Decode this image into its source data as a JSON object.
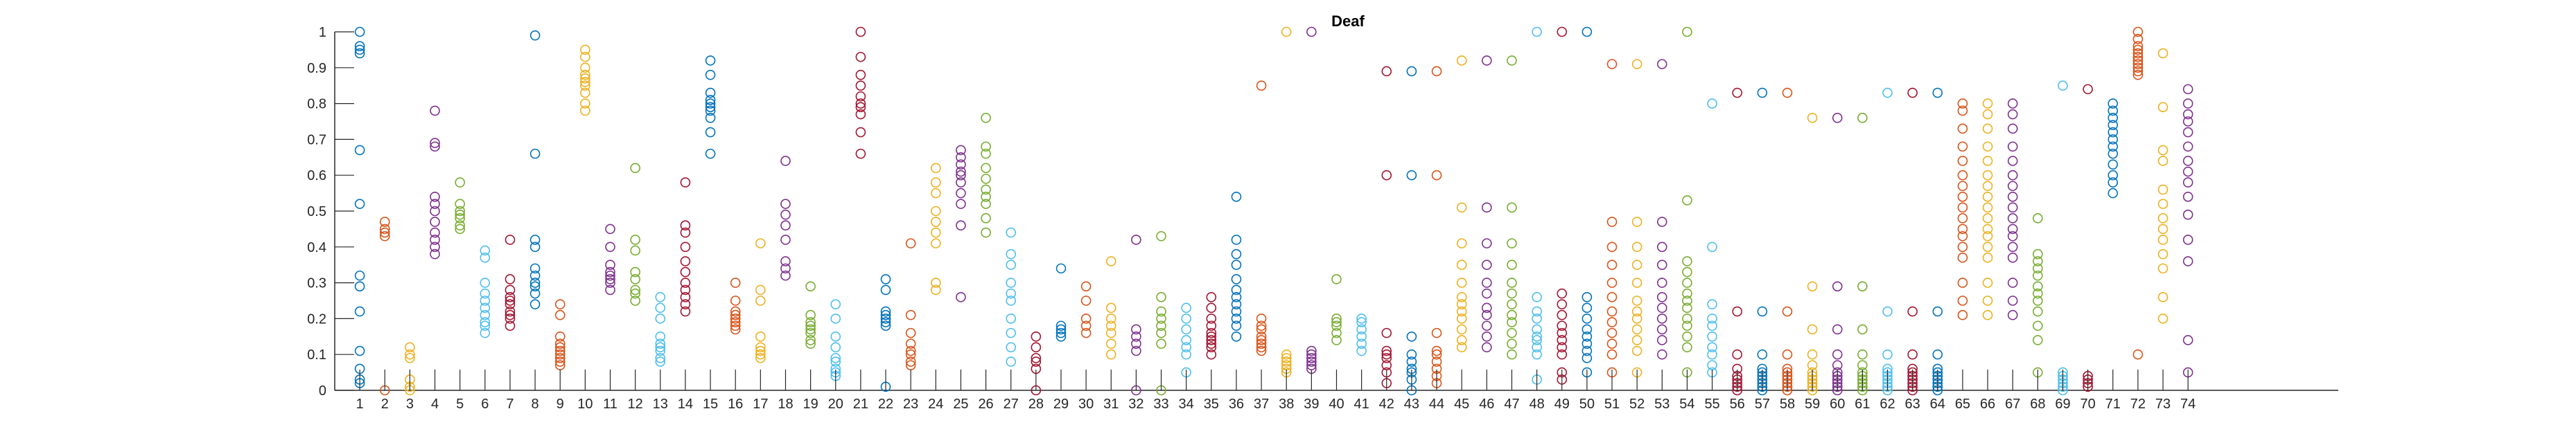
{
  "chart_data": {
    "type": "scatter",
    "title": "Deaf",
    "xlabel": "",
    "ylabel": "",
    "xlim": [
      0,
      80
    ],
    "ylim": [
      0,
      1
    ],
    "grid": false,
    "legend": "none",
    "marker": "open-circle",
    "x_ticks": [
      1,
      2,
      3,
      4,
      5,
      6,
      7,
      8,
      9,
      10,
      11,
      12,
      13,
      14,
      15,
      16,
      17,
      18,
      19,
      20,
      21,
      22,
      23,
      24,
      25,
      26,
      27,
      28,
      29,
      30,
      31,
      32,
      33,
      34,
      35,
      36,
      37,
      38,
      39,
      40,
      41,
      42,
      43,
      44,
      45,
      46,
      47,
      48,
      49,
      50,
      51,
      52,
      53,
      54,
      55,
      56,
      57,
      58,
      59,
      60,
      61,
      62,
      63,
      64,
      65,
      66,
      67,
      68,
      69,
      70,
      71,
      72,
      73,
      74
    ],
    "y_ticks": [
      0,
      0.1,
      0.2,
      0.3,
      0.4,
      0.5,
      0.6,
      0.7,
      0.8,
      0.9,
      1
    ],
    "y_tick_labels": [
      "0",
      "0.1",
      "0.2",
      "0.3",
      "0.4",
      "0.5",
      "0.6",
      "0.7",
      "0.8",
      "0.9",
      "1"
    ],
    "palette": [
      "#0072BD",
      "#D95319",
      "#EDB120",
      "#7E2F8E",
      "#77AC30",
      "#4DBEEE",
      "#A2142F"
    ],
    "series": [
      {
        "x": 1,
        "values": [
          1.0,
          0.96,
          0.95,
          0.94,
          0.67,
          0.52,
          0.32,
          0.29,
          0.22,
          0.11,
          0.06,
          0.03,
          0.02
        ]
      },
      {
        "x": 2,
        "values": [
          0.47,
          0.45,
          0.44,
          0.43,
          0.0
        ]
      },
      {
        "x": 3,
        "values": [
          0.12,
          0.1,
          0.09,
          0.03,
          0.01,
          0.0
        ]
      },
      {
        "x": 4,
        "values": [
          0.78,
          0.69,
          0.68,
          0.54,
          0.52,
          0.5,
          0.47,
          0.44,
          0.42,
          0.4,
          0.38
        ]
      },
      {
        "x": 5,
        "values": [
          0.58,
          0.52,
          0.5,
          0.49,
          0.48,
          0.46,
          0.45
        ]
      },
      {
        "x": 6,
        "values": [
          0.39,
          0.37,
          0.3,
          0.27,
          0.25,
          0.23,
          0.21,
          0.19,
          0.18,
          0.16
        ]
      },
      {
        "x": 7,
        "values": [
          0.42,
          0.31,
          0.28,
          0.26,
          0.25,
          0.24,
          0.22,
          0.21,
          0.2,
          0.18
        ]
      },
      {
        "x": 8,
        "values": [
          0.99,
          0.66,
          0.42,
          0.4,
          0.34,
          0.32,
          0.3,
          0.29,
          0.27,
          0.24
        ]
      },
      {
        "x": 9,
        "values": [
          0.24,
          0.21,
          0.15,
          0.13,
          0.12,
          0.11,
          0.1,
          0.09,
          0.08,
          0.07
        ]
      },
      {
        "x": 10,
        "values": [
          0.95,
          0.93,
          0.9,
          0.88,
          0.87,
          0.86,
          0.85,
          0.83,
          0.8,
          0.78
        ]
      },
      {
        "x": 11,
        "values": [
          0.45,
          0.4,
          0.35,
          0.33,
          0.32,
          0.31,
          0.3,
          0.28
        ]
      },
      {
        "x": 12,
        "values": [
          0.62,
          0.42,
          0.39,
          0.33,
          0.31,
          0.28,
          0.27,
          0.25
        ]
      },
      {
        "x": 13,
        "values": [
          0.26,
          0.23,
          0.2,
          0.15,
          0.13,
          0.12,
          0.11,
          0.09,
          0.08
        ]
      },
      {
        "x": 14,
        "values": [
          0.58,
          0.46,
          0.44,
          0.4,
          0.36,
          0.33,
          0.3,
          0.28,
          0.26,
          0.24,
          0.22
        ]
      },
      {
        "x": 15,
        "values": [
          0.92,
          0.88,
          0.83,
          0.81,
          0.8,
          0.79,
          0.78,
          0.76,
          0.72,
          0.66
        ]
      },
      {
        "x": 16,
        "values": [
          0.3,
          0.25,
          0.22,
          0.21,
          0.2,
          0.19,
          0.18,
          0.17
        ]
      },
      {
        "x": 17,
        "values": [
          0.41,
          0.28,
          0.25,
          0.15,
          0.12,
          0.11,
          0.1,
          0.09
        ]
      },
      {
        "x": 18,
        "values": [
          0.64,
          0.52,
          0.49,
          0.46,
          0.42,
          0.36,
          0.34,
          0.32
        ]
      },
      {
        "x": 19,
        "values": [
          0.29,
          0.21,
          0.19,
          0.18,
          0.17,
          0.16,
          0.14,
          0.13
        ]
      },
      {
        "x": 20,
        "values": [
          0.24,
          0.2,
          0.15,
          0.12,
          0.09,
          0.08,
          0.06,
          0.05,
          0.04
        ]
      },
      {
        "x": 21,
        "values": [
          1.0,
          0.93,
          0.88,
          0.85,
          0.82,
          0.8,
          0.79,
          0.77,
          0.72,
          0.66
        ]
      },
      {
        "x": 22,
        "values": [
          0.31,
          0.28,
          0.22,
          0.21,
          0.2,
          0.19,
          0.18,
          0.01
        ]
      },
      {
        "x": 23,
        "values": [
          0.41,
          0.21,
          0.16,
          0.13,
          0.11,
          0.1,
          0.08,
          0.07
        ]
      },
      {
        "x": 24,
        "values": [
          0.62,
          0.58,
          0.55,
          0.5,
          0.47,
          0.44,
          0.41,
          0.3,
          0.28
        ]
      },
      {
        "x": 25,
        "values": [
          0.67,
          0.65,
          0.63,
          0.61,
          0.6,
          0.58,
          0.55,
          0.52,
          0.46,
          0.26
        ]
      },
      {
        "x": 26,
        "values": [
          0.76,
          0.68,
          0.66,
          0.62,
          0.59,
          0.56,
          0.54,
          0.52,
          0.48,
          0.44
        ]
      },
      {
        "x": 27,
        "values": [
          0.44,
          0.38,
          0.35,
          0.3,
          0.27,
          0.25,
          0.2,
          0.16,
          0.12,
          0.08
        ]
      },
      {
        "x": 28,
        "values": [
          0.15,
          0.12,
          0.09,
          0.08,
          0.06,
          0.0
        ]
      },
      {
        "x": 29,
        "values": [
          0.34,
          0.18,
          0.17,
          0.16,
          0.15
        ]
      },
      {
        "x": 30,
        "values": [
          0.29,
          0.25,
          0.2,
          0.18,
          0.16
        ]
      },
      {
        "x": 31,
        "values": [
          0.36,
          0.23,
          0.2,
          0.18,
          0.16,
          0.13,
          0.1
        ]
      },
      {
        "x": 32,
        "values": [
          0.42,
          0.17,
          0.15,
          0.13,
          0.11,
          0.0
        ]
      },
      {
        "x": 33,
        "values": [
          0.43,
          0.26,
          0.22,
          0.2,
          0.18,
          0.16,
          0.13,
          0.0
        ]
      },
      {
        "x": 34,
        "values": [
          0.23,
          0.2,
          0.17,
          0.14,
          0.12,
          0.1,
          0.05
        ]
      },
      {
        "x": 35,
        "values": [
          0.26,
          0.23,
          0.2,
          0.18,
          0.16,
          0.15,
          0.14,
          0.13,
          0.12,
          0.1
        ]
      },
      {
        "x": 36,
        "values": [
          0.54,
          0.42,
          0.38,
          0.35,
          0.31,
          0.28,
          0.26,
          0.24,
          0.22,
          0.2,
          0.18,
          0.15
        ]
      },
      {
        "x": 37,
        "values": [
          0.85,
          0.2,
          0.18,
          0.17,
          0.15,
          0.14,
          0.13,
          0.12,
          0.11
        ]
      },
      {
        "x": 38,
        "values": [
          1.0,
          0.1,
          0.09,
          0.08,
          0.07,
          0.06,
          0.05
        ]
      },
      {
        "x": 39,
        "values": [
          1.0,
          0.11,
          0.1,
          0.09,
          0.08,
          0.07,
          0.06
        ]
      },
      {
        "x": 40,
        "values": [
          0.31,
          0.2,
          0.19,
          0.18,
          0.16,
          0.14
        ]
      },
      {
        "x": 41,
        "values": [
          0.2,
          0.19,
          0.17,
          0.15,
          0.13,
          0.11
        ]
      },
      {
        "x": 42,
        "values": [
          0.89,
          0.6,
          0.16,
          0.11,
          0.1,
          0.09,
          0.07,
          0.05,
          0.02
        ]
      },
      {
        "x": 43,
        "values": [
          0.89,
          0.6,
          0.15,
          0.1,
          0.08,
          0.06,
          0.05,
          0.03,
          0.0
        ]
      },
      {
        "x": 44,
        "values": [
          0.89,
          0.6,
          0.16,
          0.11,
          0.1,
          0.08,
          0.06,
          0.04,
          0.02
        ]
      },
      {
        "x": 45,
        "values": [
          0.92,
          0.51,
          0.41,
          0.35,
          0.3,
          0.26,
          0.24,
          0.22,
          0.2,
          0.17,
          0.14,
          0.12
        ]
      },
      {
        "x": 46,
        "values": [
          0.92,
          0.51,
          0.41,
          0.35,
          0.3,
          0.27,
          0.23,
          0.21,
          0.18,
          0.15,
          0.12
        ]
      },
      {
        "x": 47,
        "values": [
          0.92,
          0.51,
          0.41,
          0.35,
          0.3,
          0.27,
          0.24,
          0.21,
          0.19,
          0.16,
          0.13,
          0.1
        ]
      },
      {
        "x": 48,
        "values": [
          1.0,
          0.26,
          0.22,
          0.2,
          0.17,
          0.15,
          0.14,
          0.12,
          0.1,
          0.03
        ]
      },
      {
        "x": 49,
        "values": [
          1.0,
          0.27,
          0.24,
          0.21,
          0.18,
          0.16,
          0.14,
          0.12,
          0.1,
          0.05,
          0.03
        ]
      },
      {
        "x": 50,
        "values": [
          1.0,
          0.26,
          0.23,
          0.2,
          0.17,
          0.15,
          0.13,
          0.11,
          0.09,
          0.05
        ]
      },
      {
        "x": 51,
        "values": [
          0.91,
          0.47,
          0.4,
          0.35,
          0.3,
          0.26,
          0.22,
          0.19,
          0.16,
          0.13,
          0.1,
          0.05
        ]
      },
      {
        "x": 52,
        "values": [
          0.91,
          0.47,
          0.4,
          0.35,
          0.3,
          0.25,
          0.22,
          0.2,
          0.17,
          0.14,
          0.11,
          0.05
        ]
      },
      {
        "x": 53,
        "values": [
          0.91,
          0.47,
          0.4,
          0.35,
          0.3,
          0.26,
          0.23,
          0.2,
          0.17,
          0.14,
          0.1
        ]
      },
      {
        "x": 54,
        "values": [
          1.0,
          0.53,
          0.36,
          0.33,
          0.3,
          0.27,
          0.25,
          0.23,
          0.2,
          0.18,
          0.15,
          0.12,
          0.05
        ]
      },
      {
        "x": 55,
        "values": [
          0.8,
          0.4,
          0.24,
          0.2,
          0.18,
          0.15,
          0.12,
          0.1,
          0.07,
          0.05
        ]
      },
      {
        "x": 56,
        "values": [
          0.83,
          0.22,
          0.1,
          0.06,
          0.04,
          0.03,
          0.02,
          0.01,
          0.0
        ]
      },
      {
        "x": 57,
        "values": [
          0.83,
          0.22,
          0.1,
          0.06,
          0.05,
          0.04,
          0.03,
          0.02,
          0.01,
          0.0
        ]
      },
      {
        "x": 58,
        "values": [
          0.83,
          0.22,
          0.1,
          0.06,
          0.05,
          0.04,
          0.03,
          0.02,
          0.01,
          0.0
        ]
      },
      {
        "x": 59,
        "values": [
          0.76,
          0.29,
          0.17,
          0.1,
          0.07,
          0.05,
          0.04,
          0.03,
          0.02,
          0.01,
          0.0
        ]
      },
      {
        "x": 60,
        "values": [
          0.76,
          0.29,
          0.17,
          0.1,
          0.07,
          0.05,
          0.04,
          0.03,
          0.02,
          0.01,
          0.0
        ]
      },
      {
        "x": 61,
        "values": [
          0.76,
          0.29,
          0.17,
          0.1,
          0.07,
          0.05,
          0.04,
          0.03,
          0.02,
          0.01,
          0.0
        ]
      },
      {
        "x": 62,
        "values": [
          0.83,
          0.22,
          0.1,
          0.06,
          0.05,
          0.04,
          0.03,
          0.02,
          0.01,
          0.0
        ]
      },
      {
        "x": 63,
        "values": [
          0.83,
          0.22,
          0.1,
          0.06,
          0.05,
          0.04,
          0.03,
          0.02,
          0.01,
          0.0
        ]
      },
      {
        "x": 64,
        "values": [
          0.83,
          0.22,
          0.1,
          0.06,
          0.05,
          0.04,
          0.03,
          0.02,
          0.01,
          0.0
        ]
      },
      {
        "x": 65,
        "values": [
          0.8,
          0.78,
          0.73,
          0.68,
          0.64,
          0.6,
          0.57,
          0.54,
          0.51,
          0.48,
          0.45,
          0.43,
          0.4,
          0.37,
          0.3,
          0.25,
          0.21
        ]
      },
      {
        "x": 66,
        "values": [
          0.8,
          0.77,
          0.73,
          0.68,
          0.64,
          0.6,
          0.57,
          0.54,
          0.51,
          0.48,
          0.45,
          0.43,
          0.4,
          0.37,
          0.3,
          0.25,
          0.21
        ]
      },
      {
        "x": 67,
        "values": [
          0.8,
          0.77,
          0.73,
          0.68,
          0.64,
          0.6,
          0.57,
          0.54,
          0.51,
          0.48,
          0.45,
          0.43,
          0.4,
          0.37,
          0.3,
          0.25,
          0.21
        ]
      },
      {
        "x": 68,
        "values": [
          0.48,
          0.38,
          0.36,
          0.34,
          0.32,
          0.29,
          0.27,
          0.25,
          0.22,
          0.18,
          0.14,
          0.05
        ]
      },
      {
        "x": 69,
        "values": [
          0.85,
          0.05,
          0.04,
          0.03,
          0.02,
          0.01,
          0.0
        ]
      },
      {
        "x": 70,
        "values": [
          0.84,
          0.04,
          0.03,
          0.02,
          0.01
        ]
      },
      {
        "x": 71,
        "values": [
          0.8,
          0.78,
          0.76,
          0.74,
          0.72,
          0.7,
          0.68,
          0.66,
          0.63,
          0.6,
          0.58,
          0.55
        ]
      },
      {
        "x": 72,
        "values": [
          1.0,
          0.98,
          0.96,
          0.95,
          0.94,
          0.93,
          0.92,
          0.91,
          0.9,
          0.89,
          0.88,
          0.1
        ]
      },
      {
        "x": 73,
        "values": [
          0.94,
          0.79,
          0.67,
          0.64,
          0.56,
          0.52,
          0.48,
          0.45,
          0.42,
          0.38,
          0.34,
          0.26,
          0.2
        ]
      },
      {
        "x": 74,
        "values": [
          0.84,
          0.8,
          0.77,
          0.75,
          0.72,
          0.68,
          0.64,
          0.61,
          0.58,
          0.54,
          0.49,
          0.42,
          0.36,
          0.14,
          0.05
        ]
      }
    ]
  }
}
